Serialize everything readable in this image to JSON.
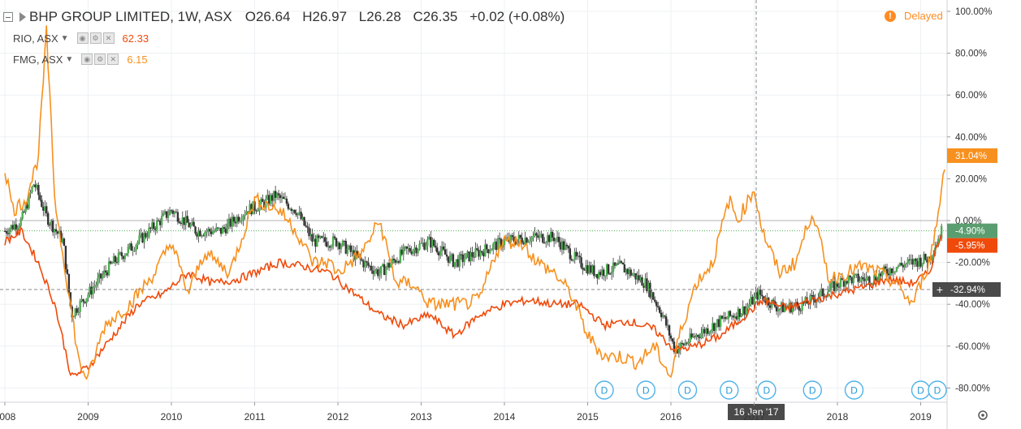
{
  "header": {
    "title": "BHP GROUP LIMITED, 1W, ASX",
    "ohlc": {
      "open": "O26.64",
      "high": "H26.97",
      "low": "L26.28",
      "close": "C26.35",
      "change": "+0.02 (+0.08%)"
    }
  },
  "compare": [
    {
      "symbol": "RIO, ASX",
      "value": "62.33",
      "color": "#f04a0a"
    },
    {
      "symbol": "FMG, ASX",
      "value": "6.15",
      "color": "#f7901e"
    }
  ],
  "delayed": {
    "label": "Delayed",
    "color": "#ff8c22"
  },
  "crosshair": {
    "date_label": "16 Jan '17",
    "value_label": "-32.94%"
  },
  "colors": {
    "up": "#26a69a",
    "down": "#ef5350",
    "bhp_body_up": "#4caf50",
    "grid": "#eef0f3",
    "axis_text": "#333333"
  },
  "chart_data": {
    "type": "line",
    "title": "BHP GROUP LIMITED, 1W, ASX",
    "xlabel": "",
    "ylabel": "",
    "x_ticks": [
      "2008",
      "2009",
      "2010",
      "2011",
      "2012",
      "2013",
      "2014",
      "2015",
      "2016",
      "2017",
      "2018",
      "2019"
    ],
    "y_ticks": [
      "100.00%",
      "80.00%",
      "60.00%",
      "40.00%",
      "20.00%",
      "0.00%",
      "-20.00%",
      "-40.00%",
      "-60.00%",
      "-80.00%"
    ],
    "ylim": [
      -90,
      100
    ],
    "xlim": [
      2008.0,
      2019.3
    ],
    "grid": true,
    "series": [
      {
        "name": "BHP GROUP LIMITED",
        "style": "candles",
        "x": [
          2008.0,
          2008.2,
          2008.35,
          2008.5,
          2008.7,
          2008.8,
          2009.0,
          2009.3,
          2009.6,
          2010.0,
          2010.3,
          2010.6,
          2010.9,
          2011.1,
          2011.25,
          2011.5,
          2011.7,
          2012.0,
          2012.3,
          2012.5,
          2012.8,
          2013.1,
          2013.4,
          2013.7,
          2014.0,
          2014.3,
          2014.6,
          2014.9,
          2015.1,
          2015.4,
          2015.7,
          2015.9,
          2016.05,
          2016.3,
          2016.6,
          2016.9,
          2017.05,
          2017.3,
          2017.6,
          2017.9,
          2018.1,
          2018.4,
          2018.7,
          2018.9,
          2019.1,
          2019.25
        ],
        "values": [
          -5,
          0,
          18,
          2,
          -10,
          -45,
          -35,
          -20,
          -10,
          5,
          -5,
          -5,
          5,
          8,
          12,
          5,
          -10,
          -10,
          -20,
          -25,
          -15,
          -10,
          -20,
          -15,
          -10,
          -8,
          -8,
          -20,
          -25,
          -22,
          -30,
          -45,
          -62,
          -55,
          -48,
          -42,
          -35,
          -42,
          -40,
          -33,
          -28,
          -28,
          -22,
          -20,
          -18,
          -5
        ]
      },
      {
        "name": "RIO, ASX",
        "style": "line",
        "color": "#f04a0a",
        "x": [
          2008.0,
          2008.2,
          2008.4,
          2008.6,
          2008.8,
          2009.0,
          2009.3,
          2009.6,
          2009.9,
          2010.2,
          2010.5,
          2010.8,
          2011.0,
          2011.3,
          2011.6,
          2011.9,
          2012.2,
          2012.5,
          2012.8,
          2013.1,
          2013.4,
          2013.7,
          2014.0,
          2014.3,
          2014.6,
          2014.9,
          2015.2,
          2015.5,
          2015.8,
          2016.05,
          2016.3,
          2016.6,
          2016.9,
          2017.1,
          2017.4,
          2017.7,
          2018.0,
          2018.3,
          2018.6,
          2018.9,
          2019.1,
          2019.25
        ],
        "values": [
          -10,
          -5,
          -20,
          -40,
          -75,
          -70,
          -55,
          -40,
          -35,
          -25,
          -30,
          -28,
          -25,
          -20,
          -22,
          -25,
          -35,
          -45,
          -50,
          -45,
          -55,
          -45,
          -40,
          -38,
          -40,
          -40,
          -50,
          -48,
          -52,
          -62,
          -60,
          -55,
          -45,
          -38,
          -42,
          -38,
          -35,
          -32,
          -28,
          -30,
          -25,
          -6
        ]
      },
      {
        "name": "FMG, ASX",
        "style": "line",
        "color": "#f7901e",
        "x": [
          2008.0,
          2008.1,
          2008.25,
          2008.4,
          2008.5,
          2008.6,
          2008.75,
          2008.9,
          2009.0,
          2009.2,
          2009.5,
          2009.8,
          2010.0,
          2010.2,
          2010.4,
          2010.7,
          2011.0,
          2011.3,
          2011.5,
          2011.7,
          2011.9,
          2012.0,
          2012.3,
          2012.5,
          2012.7,
          2012.9,
          2013.1,
          2013.3,
          2013.5,
          2013.7,
          2013.9,
          2014.0,
          2014.2,
          2014.4,
          2014.6,
          2014.8,
          2015.0,
          2015.2,
          2015.4,
          2015.6,
          2015.8,
          2016.0,
          2016.1,
          2016.3,
          2016.5,
          2016.7,
          2016.8,
          2017.0,
          2017.1,
          2017.3,
          2017.5,
          2017.7,
          2017.9,
          2018.1,
          2018.3,
          2018.5,
          2018.7,
          2018.9,
          2019.0,
          2019.1,
          2019.2,
          2019.3
        ],
        "values": [
          25,
          5,
          10,
          30,
          90,
          10,
          -30,
          -70,
          -75,
          -50,
          -40,
          -25,
          -10,
          -35,
          -15,
          -25,
          10,
          5,
          -5,
          -20,
          -20,
          -25,
          -15,
          0,
          -30,
          -30,
          -40,
          -40,
          -40,
          -38,
          -15,
          -10,
          -10,
          -20,
          -25,
          -35,
          -55,
          -65,
          -65,
          -68,
          -60,
          -75,
          -55,
          -30,
          -20,
          10,
          0,
          15,
          -5,
          -25,
          -20,
          5,
          -28,
          -25,
          -22,
          -25,
          -30,
          -40,
          -30,
          -20,
          0,
          31
        ]
      }
    ],
    "last_values": [
      {
        "label": "31.04%",
        "color": "#f7901e",
        "value": 31.04
      },
      {
        "label": "-4.90%",
        "color": "#5a9e6f",
        "value": -4.9
      },
      {
        "label": "-5.95%",
        "color": "#f04a0a",
        "value": -5.95
      }
    ],
    "dividend_markers": {
      "label": "D",
      "x": [
        2015.2,
        2015.7,
        2016.2,
        2016.7,
        2017.15,
        2017.7,
        2018.2,
        2019.0,
        2019.2
      ]
    }
  }
}
